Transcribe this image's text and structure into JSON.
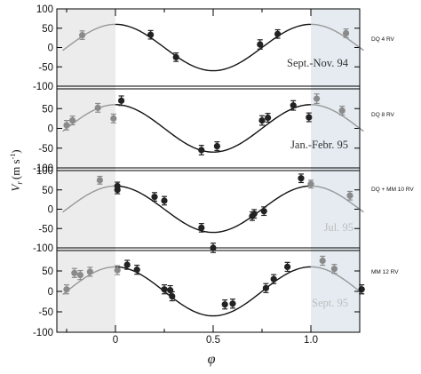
{
  "chart_data": [
    {
      "type": "scatter",
      "panel": "Sept.-Nov. 94",
      "title": "",
      "side_label": "DQ  4 RV",
      "xlim": [
        -0.27,
        1.27
      ],
      "ylim": [
        -100,
        100
      ],
      "yticks": [
        "100",
        "50",
        "0",
        "-50",
        "-100"
      ],
      "model": {
        "amplitude": 60,
        "phase_of_minimum": 0.5
      },
      "points": [
        {
          "x": -0.17,
          "y": 32,
          "err": 11,
          "shade": "gray"
        },
        {
          "x": 0.18,
          "y": 33,
          "err": 11,
          "shade": "black"
        },
        {
          "x": 0.31,
          "y": -25,
          "err": 11,
          "shade": "black"
        },
        {
          "x": 0.74,
          "y": 8,
          "err": 12,
          "shade": "black"
        },
        {
          "x": 0.83,
          "y": 35,
          "err": 11,
          "shade": "black"
        },
        {
          "x": 1.18,
          "y": 37,
          "err": 11,
          "shade": "gray"
        }
      ]
    },
    {
      "type": "scatter",
      "panel": "Jan.-Febr. 95",
      "title": "",
      "side_label": "DQ  8 RV",
      "xlim": [
        -0.27,
        1.27
      ],
      "ylim": [
        -100,
        100
      ],
      "yticks": [
        "50",
        "0",
        "-50",
        "-100"
      ],
      "model": {
        "amplitude": 60,
        "phase_of_minimum": 0.5
      },
      "points": [
        {
          "x": -0.25,
          "y": 8,
          "err": 12,
          "shade": "gray"
        },
        {
          "x": -0.22,
          "y": 20,
          "err": 11,
          "shade": "gray"
        },
        {
          "x": -0.09,
          "y": 52,
          "err": 11,
          "shade": "gray"
        },
        {
          "x": -0.01,
          "y": 25,
          "err": 11,
          "shade": "gray"
        },
        {
          "x": 0.03,
          "y": 70,
          "err": 12,
          "shade": "black"
        },
        {
          "x": 0.44,
          "y": -55,
          "err": 12,
          "shade": "black"
        },
        {
          "x": 0.52,
          "y": -45,
          "err": 11,
          "shade": "black"
        },
        {
          "x": 0.75,
          "y": 20,
          "err": 12,
          "shade": "black"
        },
        {
          "x": 0.78,
          "y": 27,
          "err": 11,
          "shade": "black"
        },
        {
          "x": 0.91,
          "y": 58,
          "err": 12,
          "shade": "black"
        },
        {
          "x": 0.99,
          "y": 28,
          "err": 11,
          "shade": "black"
        },
        {
          "x": 1.03,
          "y": 75,
          "err": 12,
          "shade": "gray"
        },
        {
          "x": 1.16,
          "y": 45,
          "err": 11,
          "shade": "gray"
        }
      ]
    },
    {
      "type": "scatter",
      "panel": "Jul. 95",
      "title": "",
      "side_label": "DQ + MM  10 RV",
      "xlim": [
        -0.27,
        1.27
      ],
      "ylim": [
        -100,
        100
      ],
      "yticks": [
        "100",
        "50",
        "0",
        "-50",
        "-100"
      ],
      "model": {
        "amplitude": 60,
        "phase_of_minimum": 0.5
      },
      "points": [
        {
          "x": -0.08,
          "y": 75,
          "err": 10,
          "shade": "gray"
        },
        {
          "x": 0.01,
          "y": 60,
          "err": 10,
          "shade": "black"
        },
        {
          "x": 0.01,
          "y": 50,
          "err": 10,
          "shade": "black"
        },
        {
          "x": 0.2,
          "y": 32,
          "err": 11,
          "shade": "black"
        },
        {
          "x": 0.25,
          "y": 22,
          "err": 11,
          "shade": "black"
        },
        {
          "x": 0.44,
          "y": -48,
          "err": 11,
          "shade": "black"
        },
        {
          "x": 0.5,
          "y": -100,
          "err": 12,
          "shade": "black"
        },
        {
          "x": 0.7,
          "y": -18,
          "err": 11,
          "shade": "black"
        },
        {
          "x": 0.71,
          "y": -12,
          "err": 11,
          "shade": "black"
        },
        {
          "x": 0.76,
          "y": -5,
          "err": 11,
          "shade": "black"
        },
        {
          "x": 0.95,
          "y": 80,
          "err": 11,
          "shade": "black"
        },
        {
          "x": 1.0,
          "y": 65,
          "err": 10,
          "shade": "gray"
        },
        {
          "x": 1.2,
          "y": 35,
          "err": 11,
          "shade": "gray"
        }
      ]
    },
    {
      "type": "scatter",
      "panel": "Sept. 95",
      "title": "",
      "side_label": "MM  12 RV",
      "xlim": [
        -0.27,
        1.27
      ],
      "ylim": [
        -100,
        100
      ],
      "yticks": [
        "50",
        "0",
        "-50",
        "-100"
      ],
      "model": {
        "amplitude": 60,
        "phase_of_minimum": 0.5
      },
      "points": [
        {
          "x": -0.25,
          "y": 5,
          "err": 11,
          "shade": "gray"
        },
        {
          "x": -0.21,
          "y": 45,
          "err": 11,
          "shade": "gray"
        },
        {
          "x": -0.18,
          "y": 40,
          "err": 11,
          "shade": "gray"
        },
        {
          "x": -0.13,
          "y": 48,
          "err": 11,
          "shade": "gray"
        },
        {
          "x": 0.01,
          "y": 52,
          "err": 11,
          "shade": "gray"
        },
        {
          "x": 0.06,
          "y": 65,
          "err": 11,
          "shade": "black"
        },
        {
          "x": 0.11,
          "y": 53,
          "err": 11,
          "shade": "black"
        },
        {
          "x": 0.25,
          "y": 5,
          "err": 11,
          "shade": "black"
        },
        {
          "x": 0.28,
          "y": 3,
          "err": 11,
          "shade": "black"
        },
        {
          "x": 0.29,
          "y": -12,
          "err": 11,
          "shade": "black"
        },
        {
          "x": 0.56,
          "y": -32,
          "err": 11,
          "shade": "black"
        },
        {
          "x": 0.6,
          "y": -30,
          "err": 11,
          "shade": "black"
        },
        {
          "x": 0.77,
          "y": 8,
          "err": 11,
          "shade": "black"
        },
        {
          "x": 0.81,
          "y": 30,
          "err": 11,
          "shade": "black"
        },
        {
          "x": 0.88,
          "y": 60,
          "err": 11,
          "shade": "black"
        },
        {
          "x": 1.06,
          "y": 75,
          "err": 11,
          "shade": "gray"
        },
        {
          "x": 1.12,
          "y": 55,
          "err": 11,
          "shade": "gray"
        },
        {
          "x": 1.26,
          "y": 5,
          "err": 11,
          "shade": "black"
        }
      ]
    }
  ],
  "x_axis": {
    "label": "φ",
    "ticks": [
      {
        "value": 0,
        "label": "0"
      },
      {
        "value": 0.5,
        "label": "0.5"
      },
      {
        "value": 1,
        "label": "1.0"
      }
    ]
  },
  "y_axis": {
    "label_main": "V",
    "label_sub": "r",
    "label_units": "(m s",
    "label_exp": "-1",
    "label_close": ")"
  },
  "colors": {
    "shade_left": "#ececec",
    "shade_right": "#e5ebf1",
    "point_black": "#222222",
    "point_gray": "#8a8a8a",
    "curve_main": "#111111",
    "curve_faded": "#999999",
    "season_label": "#bdbdbd"
  }
}
